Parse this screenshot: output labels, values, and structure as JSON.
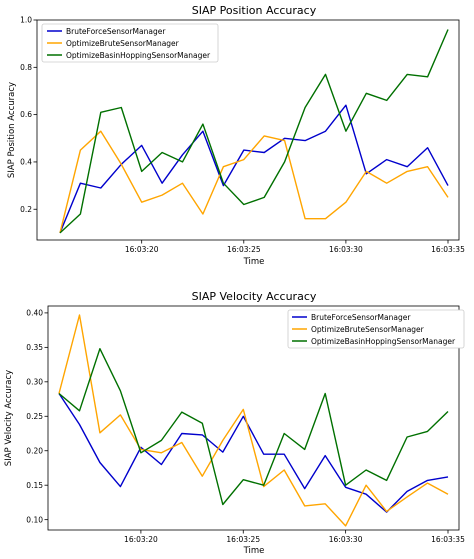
{
  "colors": {
    "BruteForceSensorManager": "#0000cc",
    "OptimizeBruteSensorManager": "#ffa500",
    "OptimizeBasinHoppingSensorManager": "#007000"
  },
  "chart_data": [
    {
      "type": "line",
      "title": "SIAP Position Accuracy",
      "xlabel": "Time",
      "ylabel": "SIAP Position Accuracy",
      "x": [
        "16:03:16",
        "16:03:17",
        "16:03:18",
        "16:03:19",
        "16:03:20",
        "16:03:21",
        "16:03:22",
        "16:03:23",
        "16:03:24",
        "16:03:25",
        "16:03:26",
        "16:03:27",
        "16:03:28",
        "16:03:29",
        "16:03:30",
        "16:03:31",
        "16:03:32",
        "16:03:33",
        "16:03:34",
        "16:03:35"
      ],
      "xticks": [
        "16:03:20",
        "16:03:25",
        "16:03:30",
        "16:03:35"
      ],
      "yticks": [
        0.2,
        0.4,
        0.6,
        0.8,
        1.0
      ],
      "ylim": [
        0.07,
        1.0
      ],
      "grid": false,
      "legend": "top-left",
      "series": [
        {
          "name": "BruteForceSensorManager",
          "values": [
            0.1,
            0.31,
            0.29,
            0.39,
            0.47,
            0.31,
            0.43,
            0.53,
            0.3,
            0.45,
            0.44,
            0.5,
            0.49,
            0.53,
            0.64,
            0.35,
            0.41,
            0.38,
            0.46,
            0.3
          ]
        },
        {
          "name": "OptimizeBruteSensorManager",
          "values": [
            0.1,
            0.45,
            0.53,
            0.39,
            0.23,
            0.26,
            0.31,
            0.18,
            0.38,
            0.41,
            0.51,
            0.49,
            0.16,
            0.16,
            0.23,
            0.36,
            0.31,
            0.36,
            0.38,
            0.25
          ]
        },
        {
          "name": "OptimizeBasinHoppingSensorManager",
          "values": [
            0.1,
            0.18,
            0.61,
            0.63,
            0.36,
            0.44,
            0.4,
            0.56,
            0.31,
            0.22,
            0.25,
            0.4,
            0.63,
            0.77,
            0.53,
            0.69,
            0.66,
            0.77,
            0.76,
            0.96
          ]
        }
      ]
    },
    {
      "type": "line",
      "title": "SIAP Velocity Accuracy",
      "xlabel": "Time",
      "ylabel": "SIAP Velocity Accuracy",
      "x": [
        "16:03:16",
        "16:03:17",
        "16:03:18",
        "16:03:19",
        "16:03:20",
        "16:03:21",
        "16:03:22",
        "16:03:23",
        "16:03:24",
        "16:03:25",
        "16:03:26",
        "16:03:27",
        "16:03:28",
        "16:03:29",
        "16:03:30",
        "16:03:31",
        "16:03:32",
        "16:03:33",
        "16:03:34",
        "16:03:35"
      ],
      "xticks": [
        "16:03:20",
        "16:03:25",
        "16:03:30",
        "16:03:35"
      ],
      "yticks": [
        0.1,
        0.15,
        0.2,
        0.25,
        0.3,
        0.35,
        0.4
      ],
      "ylim": [
        0.085,
        0.41
      ],
      "grid": false,
      "legend": "top-right",
      "series": [
        {
          "name": "BruteForceSensorManager",
          "values": [
            0.283,
            0.238,
            0.183,
            0.148,
            0.205,
            0.18,
            0.225,
            0.223,
            0.198,
            0.25,
            0.195,
            0.195,
            0.145,
            0.193,
            0.147,
            0.137,
            0.111,
            0.141,
            0.157,
            0.162
          ]
        },
        {
          "name": "OptimizeBruteSensorManager",
          "values": [
            0.283,
            0.397,
            0.226,
            0.252,
            0.202,
            0.197,
            0.212,
            0.163,
            0.215,
            0.26,
            0.148,
            0.172,
            0.12,
            0.123,
            0.091,
            0.15,
            0.112,
            0.133,
            0.153,
            0.137
          ]
        },
        {
          "name": "OptimizeBasinHoppingSensorManager",
          "values": [
            0.283,
            0.258,
            0.348,
            0.287,
            0.197,
            0.215,
            0.256,
            0.24,
            0.122,
            0.158,
            0.15,
            0.225,
            0.202,
            0.283,
            0.15,
            0.172,
            0.157,
            0.22,
            0.228,
            0.257
          ]
        }
      ]
    }
  ]
}
